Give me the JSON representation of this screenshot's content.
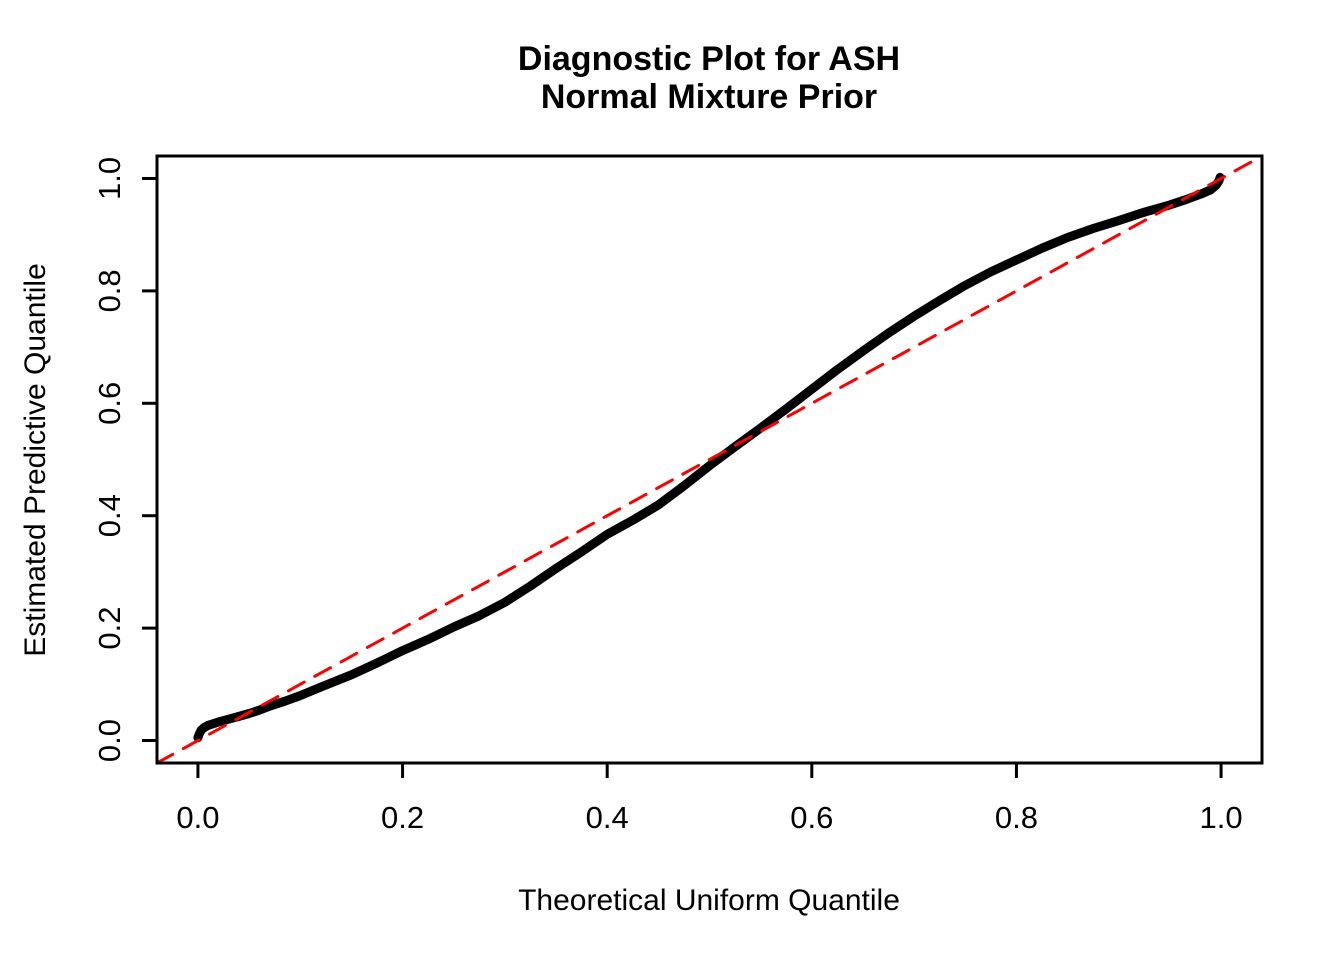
{
  "figure": {
    "title_line1": "Diagnostic Plot for ASH",
    "title_line2": "Normal Mixture Prior",
    "xlabel": "Theoretical Uniform Quantile",
    "ylabel": "Estimated Predictive Quantile"
  },
  "chart_data": {
    "type": "line",
    "title": "Diagnostic Plot for ASH\nNormal Mixture Prior",
    "xlabel": "Theoretical Uniform Quantile",
    "ylabel": "Estimated Predictive Quantile",
    "xlim": [
      -0.04,
      1.04
    ],
    "ylim": [
      -0.04,
      1.04
    ],
    "x_ticks": [
      0.0,
      0.2,
      0.4,
      0.6,
      0.8,
      1.0
    ],
    "y_ticks": [
      0.0,
      0.2,
      0.4,
      0.6,
      0.8,
      1.0
    ],
    "x_tick_labels": [
      "0.0",
      "0.2",
      "0.4",
      "0.6",
      "0.8",
      "1.0"
    ],
    "y_tick_labels": [
      "0.0",
      "0.2",
      "0.4",
      "0.6",
      "0.8",
      "1.0"
    ],
    "grid": false,
    "legend": null,
    "background_color": "#FFFFFF",
    "box_color": "#000000",
    "series": [
      {
        "name": "estimated-predictive-quantile-curve",
        "type": "line",
        "color": "#000000",
        "stroke_width": 9,
        "dash": null,
        "points": [
          [
            0.0,
            0.005
          ],
          [
            0.001,
            0.01
          ],
          [
            0.003,
            0.018
          ],
          [
            0.006,
            0.023
          ],
          [
            0.01,
            0.027
          ],
          [
            0.015,
            0.03
          ],
          [
            0.02,
            0.033
          ],
          [
            0.03,
            0.038
          ],
          [
            0.04,
            0.043
          ],
          [
            0.05,
            0.048
          ],
          [
            0.06,
            0.054
          ],
          [
            0.07,
            0.061
          ],
          [
            0.085,
            0.07
          ],
          [
            0.1,
            0.08
          ],
          [
            0.12,
            0.095
          ],
          [
            0.15,
            0.117
          ],
          [
            0.175,
            0.138
          ],
          [
            0.2,
            0.16
          ],
          [
            0.225,
            0.18
          ],
          [
            0.25,
            0.202
          ],
          [
            0.275,
            0.222
          ],
          [
            0.3,
            0.246
          ],
          [
            0.325,
            0.275
          ],
          [
            0.35,
            0.306
          ],
          [
            0.375,
            0.336
          ],
          [
            0.4,
            0.367
          ],
          [
            0.425,
            0.392
          ],
          [
            0.45,
            0.419
          ],
          [
            0.475,
            0.453
          ],
          [
            0.5,
            0.489
          ],
          [
            0.525,
            0.523
          ],
          [
            0.55,
            0.556
          ],
          [
            0.575,
            0.59
          ],
          [
            0.6,
            0.625
          ],
          [
            0.625,
            0.66
          ],
          [
            0.65,
            0.693
          ],
          [
            0.675,
            0.725
          ],
          [
            0.7,
            0.755
          ],
          [
            0.725,
            0.783
          ],
          [
            0.75,
            0.81
          ],
          [
            0.775,
            0.834
          ],
          [
            0.8,
            0.855
          ],
          [
            0.825,
            0.876
          ],
          [
            0.85,
            0.895
          ],
          [
            0.875,
            0.911
          ],
          [
            0.9,
            0.925
          ],
          [
            0.925,
            0.94
          ],
          [
            0.95,
            0.953
          ],
          [
            0.965,
            0.962
          ],
          [
            0.98,
            0.972
          ],
          [
            0.99,
            0.98
          ],
          [
            0.995,
            0.988
          ],
          [
            0.998,
            0.996
          ],
          [
            0.999,
            1.002
          ]
        ]
      },
      {
        "name": "identity-reference-line",
        "type": "line",
        "color": "#FF0000",
        "stroke_width": 3,
        "dash": [
          18,
          12
        ],
        "points": [
          [
            -0.04,
            -0.04
          ],
          [
            1.04,
            1.04
          ]
        ]
      }
    ]
  }
}
